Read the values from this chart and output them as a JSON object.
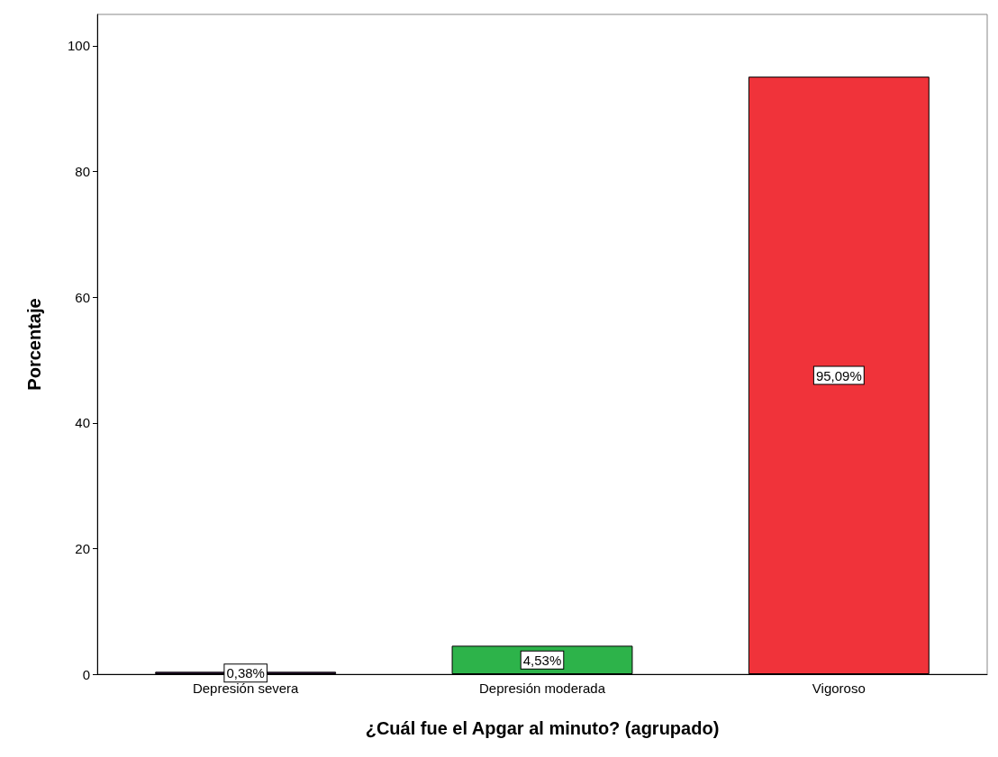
{
  "chart_data": {
    "type": "bar",
    "xlabel": "¿Cuál fue el Apgar al minuto? (agrupado)",
    "ylabel": "Porcentaje",
    "categories": [
      "Depresión severa",
      "Depresión moderada",
      "Vigoroso"
    ],
    "values": [
      0.38,
      4.53,
      95.09
    ],
    "colors": [
      "#3d1f4a",
      "#2db34a",
      "#f0333a"
    ],
    "value_labels": [
      "0,38%",
      "4,53%",
      "95,09%"
    ],
    "ylim": [
      0,
      105
    ],
    "yticks": [
      0,
      20,
      40,
      60,
      80,
      100
    ],
    "grid": false
  }
}
